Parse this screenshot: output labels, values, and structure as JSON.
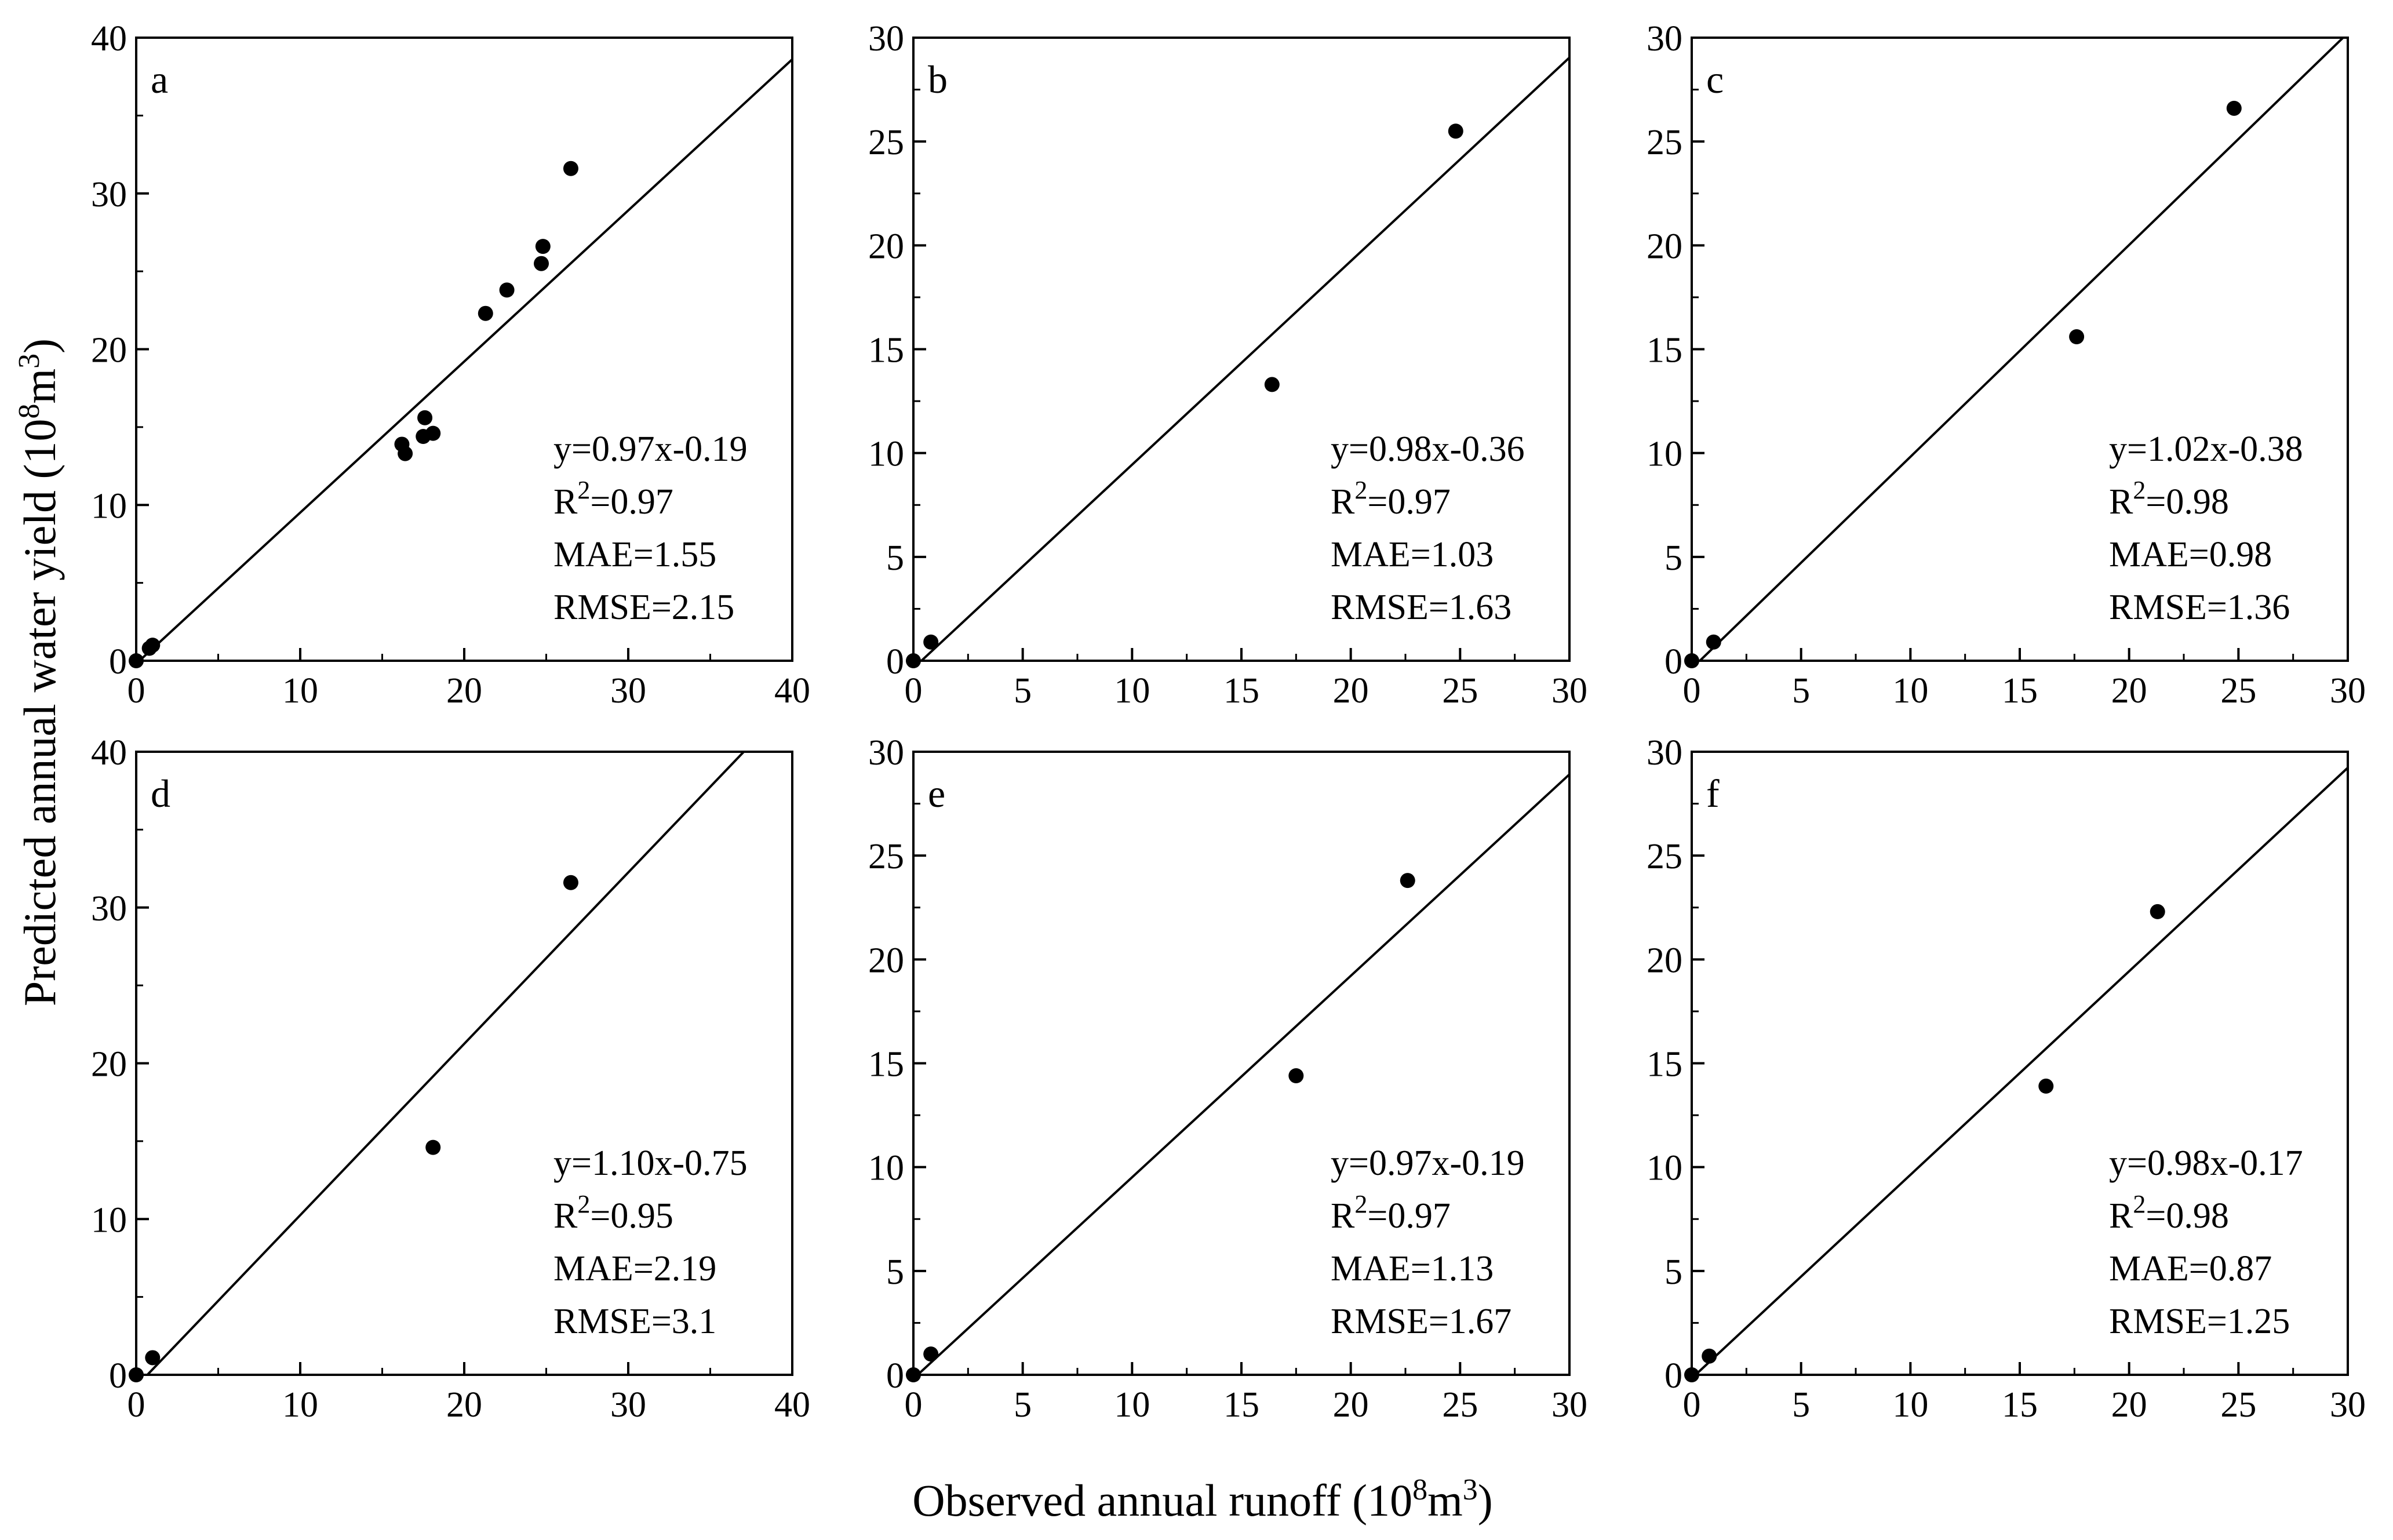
{
  "figure": {
    "ylabel": "Predicted annual water yield (10",
    "ylabel_sup": "8",
    "ylabel_mid": "m",
    "ylabel_sup2": "3",
    "ylabel_end": ")",
    "xlabel": "Observed annual runoff (10",
    "xlabel_sup": "8",
    "xlabel_mid": "m",
    "xlabel_sup2": "3",
    "xlabel_end": ")"
  },
  "chart_data": [
    {
      "type": "scatter",
      "panel": "a",
      "xlim": [
        0,
        40
      ],
      "ylim": [
        0,
        40
      ],
      "xticks": [
        0,
        10,
        20,
        30,
        40
      ],
      "yticks": [
        0,
        10,
        20,
        30,
        40
      ],
      "points": [
        [
          0,
          0
        ],
        [
          0.8,
          0.8
        ],
        [
          1.0,
          1.0
        ],
        [
          16.2,
          13.9
        ],
        [
          16.4,
          13.3
        ],
        [
          17.5,
          14.4
        ],
        [
          17.6,
          15.6
        ],
        [
          18.1,
          14.6
        ],
        [
          21.3,
          22.3
        ],
        [
          22.6,
          23.8
        ],
        [
          24.7,
          25.5
        ],
        [
          24.8,
          26.6
        ],
        [
          26.5,
          31.6
        ]
      ],
      "fit": {
        "slope": 0.97,
        "intercept": -0.19
      },
      "stats": {
        "eq": "y=0.97x-0.19",
        "r2_prefix": "R",
        "r2_sup": "2",
        "r2_value": "=0.97",
        "mae": "MAE=1.55",
        "rmse": "RMSE=2.15"
      }
    },
    {
      "type": "scatter",
      "panel": "b",
      "xlim": [
        0,
        30
      ],
      "ylim": [
        0,
        30
      ],
      "xticks": [
        0,
        5,
        10,
        15,
        20,
        25,
        30
      ],
      "yticks": [
        0,
        5,
        10,
        15,
        20,
        25,
        30
      ],
      "points": [
        [
          0,
          0
        ],
        [
          0.8,
          0.9
        ],
        [
          16.4,
          13.3
        ],
        [
          24.8,
          25.5
        ]
      ],
      "fit": {
        "slope": 0.98,
        "intercept": -0.36
      },
      "stats": {
        "eq": "y=0.98x-0.36",
        "r2_prefix": "R",
        "r2_sup": "2",
        "r2_value": "=0.97",
        "mae": "MAE=1.03",
        "rmse": "RMSE=1.63"
      }
    },
    {
      "type": "scatter",
      "panel": "c",
      "xlim": [
        0,
        30
      ],
      "ylim": [
        0,
        30
      ],
      "xticks": [
        0,
        5,
        10,
        15,
        20,
        25,
        30
      ],
      "yticks": [
        0,
        5,
        10,
        15,
        20,
        25,
        30
      ],
      "points": [
        [
          0,
          0
        ],
        [
          1.0,
          0.9
        ],
        [
          17.6,
          15.6
        ],
        [
          24.8,
          26.6
        ]
      ],
      "fit": {
        "slope": 1.02,
        "intercept": -0.38
      },
      "stats": {
        "eq": "y=1.02x-0.38",
        "r2_prefix": "R",
        "r2_sup": "2",
        "r2_value": "=0.98",
        "mae": "MAE=0.98",
        "rmse": "RMSE=1.36"
      }
    },
    {
      "type": "scatter",
      "panel": "d",
      "xlim": [
        0,
        40
      ],
      "ylim": [
        0,
        40
      ],
      "xticks": [
        0,
        10,
        20,
        30,
        40
      ],
      "yticks": [
        0,
        10,
        20,
        30,
        40
      ],
      "points": [
        [
          0,
          0
        ],
        [
          1.0,
          1.1
        ],
        [
          18.1,
          14.6
        ],
        [
          26.5,
          31.6
        ]
      ],
      "fit": {
        "slope": 1.1,
        "intercept": -0.75
      },
      "stats": {
        "eq": "y=1.10x-0.75",
        "r2_prefix": "R",
        "r2_sup": "2",
        "r2_value": "=0.95",
        "mae": "MAE=2.19",
        "rmse": "RMSE=3.1"
      }
    },
    {
      "type": "scatter",
      "panel": "e",
      "xlim": [
        0,
        30
      ],
      "ylim": [
        0,
        30
      ],
      "xticks": [
        0,
        5,
        10,
        15,
        20,
        25,
        30
      ],
      "yticks": [
        0,
        5,
        10,
        15,
        20,
        25,
        30
      ],
      "points": [
        [
          0,
          0
        ],
        [
          0.8,
          1.0
        ],
        [
          17.5,
          14.4
        ],
        [
          22.6,
          23.8
        ]
      ],
      "fit": {
        "slope": 0.97,
        "intercept": -0.19
      },
      "stats": {
        "eq": "y=0.97x-0.19",
        "r2_prefix": "R",
        "r2_sup": "2",
        "r2_value": "=0.97",
        "mae": "MAE=1.13",
        "rmse": "RMSE=1.67"
      }
    },
    {
      "type": "scatter",
      "panel": "f",
      "xlim": [
        0,
        30
      ],
      "ylim": [
        0,
        30
      ],
      "xticks": [
        0,
        5,
        10,
        15,
        20,
        25,
        30
      ],
      "yticks": [
        0,
        5,
        10,
        15,
        20,
        25,
        30
      ],
      "points": [
        [
          0,
          0
        ],
        [
          0.8,
          0.9
        ],
        [
          16.2,
          13.9
        ],
        [
          21.3,
          22.3
        ]
      ],
      "fit": {
        "slope": 0.98,
        "intercept": -0.17
      },
      "stats": {
        "eq": "y=0.98x-0.17",
        "r2_prefix": "R",
        "r2_sup": "2",
        "r2_value": "=0.98",
        "mae": "MAE=0.87",
        "rmse": "RMSE=1.25"
      }
    }
  ]
}
